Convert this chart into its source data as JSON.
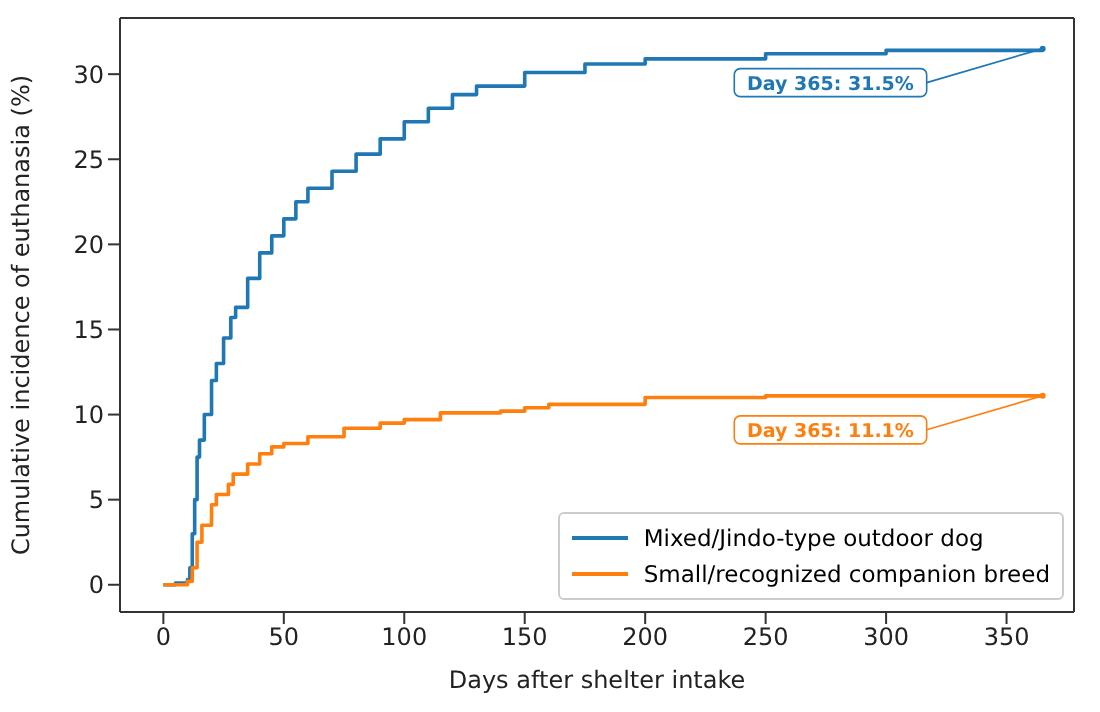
{
  "chart_data": {
    "type": "step",
    "xlabel": "Days after shelter intake",
    "ylabel": "Cumulative incidence of euthanasia (%)",
    "xlim": [
      -18,
      378
    ],
    "xticks": [
      0,
      50,
      100,
      150,
      200,
      250,
      300,
      350
    ],
    "ylim": [
      -1.6,
      33.3
    ],
    "yticks": [
      0,
      5,
      10,
      15,
      20,
      25,
      30
    ],
    "legend": "bottom right",
    "grid": false,
    "series": [
      {
        "name": "Mixed/Jindo-type outdoor dog",
        "color": "#1f77b4",
        "x": [
          0,
          5,
          10,
          11,
          12,
          13,
          14,
          15,
          17,
          20,
          22,
          25,
          28,
          30,
          35,
          40,
          45,
          50,
          55,
          60,
          70,
          80,
          90,
          100,
          110,
          120,
          130,
          150,
          175,
          200,
          250,
          300,
          365
        ],
        "values": [
          0,
          0.1,
          0.3,
          1,
          3,
          5,
          7.5,
          8.5,
          10,
          12,
          13,
          14.5,
          15.7,
          16.3,
          18,
          19.5,
          20.5,
          21.5,
          22.5,
          23.3,
          24.3,
          25.3,
          26.2,
          27.2,
          28,
          28.8,
          29.3,
          30.1,
          30.6,
          30.9,
          31.2,
          31.4,
          31.5
        ]
      },
      {
        "name": "Small/recognized companion breed",
        "color": "#ff7f0e",
        "x": [
          0,
          10,
          12,
          14,
          16,
          20,
          22,
          27,
          29,
          35,
          40,
          45,
          50,
          60,
          75,
          90,
          100,
          115,
          140,
          150,
          160,
          200,
          250,
          365
        ],
        "values": [
          0,
          0.2,
          1,
          2.5,
          3.5,
          4.7,
          5.3,
          5.9,
          6.5,
          7.1,
          7.7,
          8.1,
          8.3,
          8.7,
          9.2,
          9.5,
          9.7,
          10.1,
          10.2,
          10.4,
          10.6,
          11,
          11.1,
          11.1
        ]
      }
    ],
    "annotations": [
      {
        "text": "Day 365: 31.5%",
        "x": 365,
        "y": 31.5
      },
      {
        "text": "Day 365: 11.1%",
        "x": 365,
        "y": 11.1
      }
    ]
  }
}
